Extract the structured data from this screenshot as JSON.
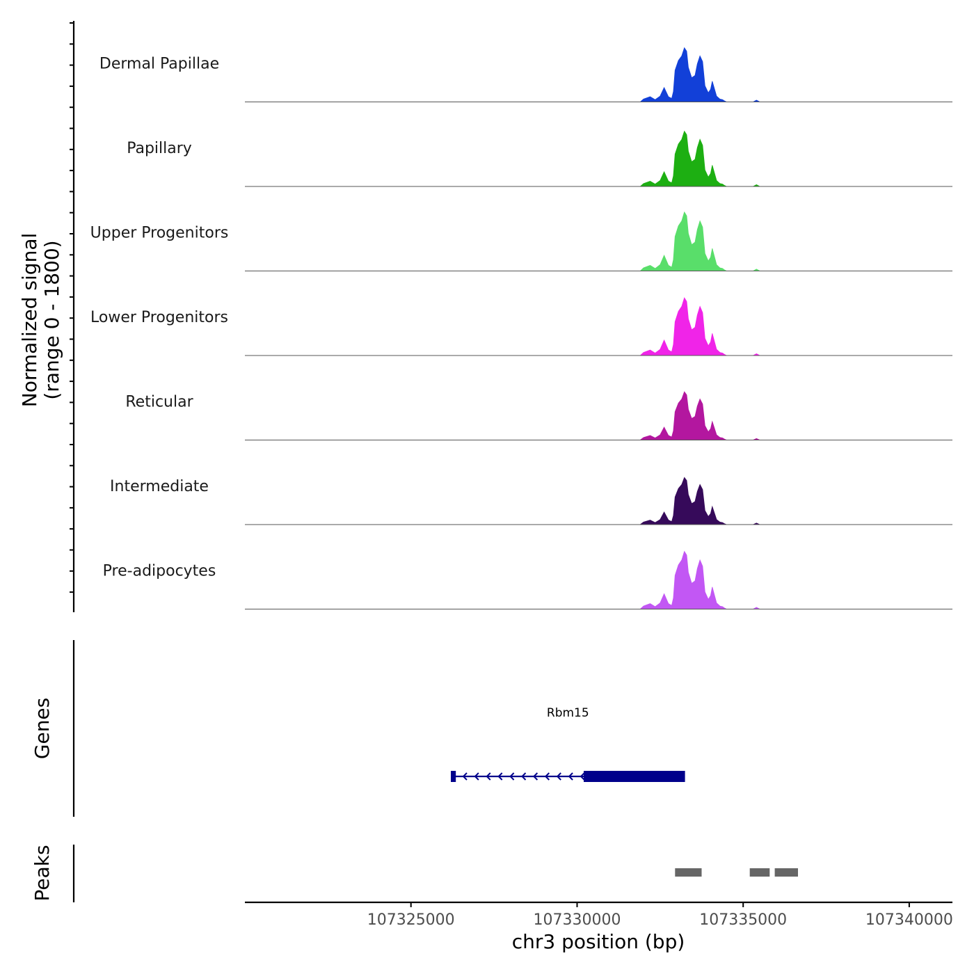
{
  "chart_data": {
    "type": "area",
    "title": "",
    "chromosome": "chr3",
    "xlim": [
      107320000,
      107341300
    ],
    "ylim": [
      0,
      1800
    ],
    "ylabel": "Normalized signal\n(range 0 - 1800)",
    "xlabel": "chr3 position (bp)",
    "x_ticks": [
      107325000,
      107330000,
      107335000,
      107340000
    ],
    "x_tick_labels": [
      "107325000",
      "107330000",
      "107335000",
      "107340000"
    ],
    "series": [
      {
        "name": "Dermal Papillae",
        "color": "#1240d8",
        "scale": 0.92
      },
      {
        "name": "Papillary",
        "color": "#1daf12",
        "scale": 0.94
      },
      {
        "name": "Upper Progenitors",
        "color": "#59de6a",
        "scale": 1.0
      },
      {
        "name": "Lower Progenitors",
        "color": "#f024e8",
        "scale": 0.98
      },
      {
        "name": "Reticular",
        "color": "#b3179f",
        "scale": 0.82
      },
      {
        "name": "Intermediate",
        "color": "#360a5a",
        "scale": 0.8
      },
      {
        "name": "Pre-adipocytes",
        "color": "#c257f4",
        "scale": 0.98
      }
    ],
    "signal_profile": [
      {
        "x": 107320000,
        "y": 0.0
      },
      {
        "x": 107331900,
        "y": 0.0
      },
      {
        "x": 107332000,
        "y": 0.05
      },
      {
        "x": 107332200,
        "y": 0.09
      },
      {
        "x": 107332350,
        "y": 0.04
      },
      {
        "x": 107332500,
        "y": 0.1
      },
      {
        "x": 107332620,
        "y": 0.25
      },
      {
        "x": 107332750,
        "y": 0.09
      },
      {
        "x": 107332850,
        "y": 0.06
      },
      {
        "x": 107332900,
        "y": 0.18
      },
      {
        "x": 107332950,
        "y": 0.55
      },
      {
        "x": 107333050,
        "y": 0.72
      },
      {
        "x": 107333150,
        "y": 0.8
      },
      {
        "x": 107333230,
        "y": 0.94
      },
      {
        "x": 107333300,
        "y": 0.88
      },
      {
        "x": 107333350,
        "y": 0.6
      },
      {
        "x": 107333450,
        "y": 0.42
      },
      {
        "x": 107333550,
        "y": 0.46
      },
      {
        "x": 107333620,
        "y": 0.66
      },
      {
        "x": 107333700,
        "y": 0.8
      },
      {
        "x": 107333780,
        "y": 0.7
      },
      {
        "x": 107333850,
        "y": 0.28
      },
      {
        "x": 107333950,
        "y": 0.16
      },
      {
        "x": 107334020,
        "y": 0.22
      },
      {
        "x": 107334070,
        "y": 0.36
      },
      {
        "x": 107334120,
        "y": 0.26
      },
      {
        "x": 107334200,
        "y": 0.1
      },
      {
        "x": 107334300,
        "y": 0.05
      },
      {
        "x": 107334380,
        "y": 0.04
      },
      {
        "x": 107334430,
        "y": 0.02
      },
      {
        "x": 107334500,
        "y": 0.0
      },
      {
        "x": 107335300,
        "y": 0.0
      },
      {
        "x": 107335400,
        "y": 0.03
      },
      {
        "x": 107335500,
        "y": 0.0
      },
      {
        "x": 107341300,
        "y": 0.0
      }
    ],
    "genes": [
      {
        "name": "Rbm15",
        "strand": "-",
        "start": 107326200,
        "end": 107333250,
        "cds_start": 107330200,
        "cds_end": 107333250,
        "utr_block": [
          107326200,
          107326350
        ]
      }
    ],
    "peaks": [
      {
        "start": 107332950,
        "end": 107333750
      },
      {
        "start": 107335200,
        "end": 107335800
      },
      {
        "start": 107335950,
        "end": 107336650
      }
    ],
    "track_labels": {
      "genes": "Genes",
      "peaks": "Peaks"
    },
    "colors": {
      "gene": "#00008b",
      "peak": "#666666",
      "axis": "#000000",
      "baseline": "#555555"
    }
  }
}
